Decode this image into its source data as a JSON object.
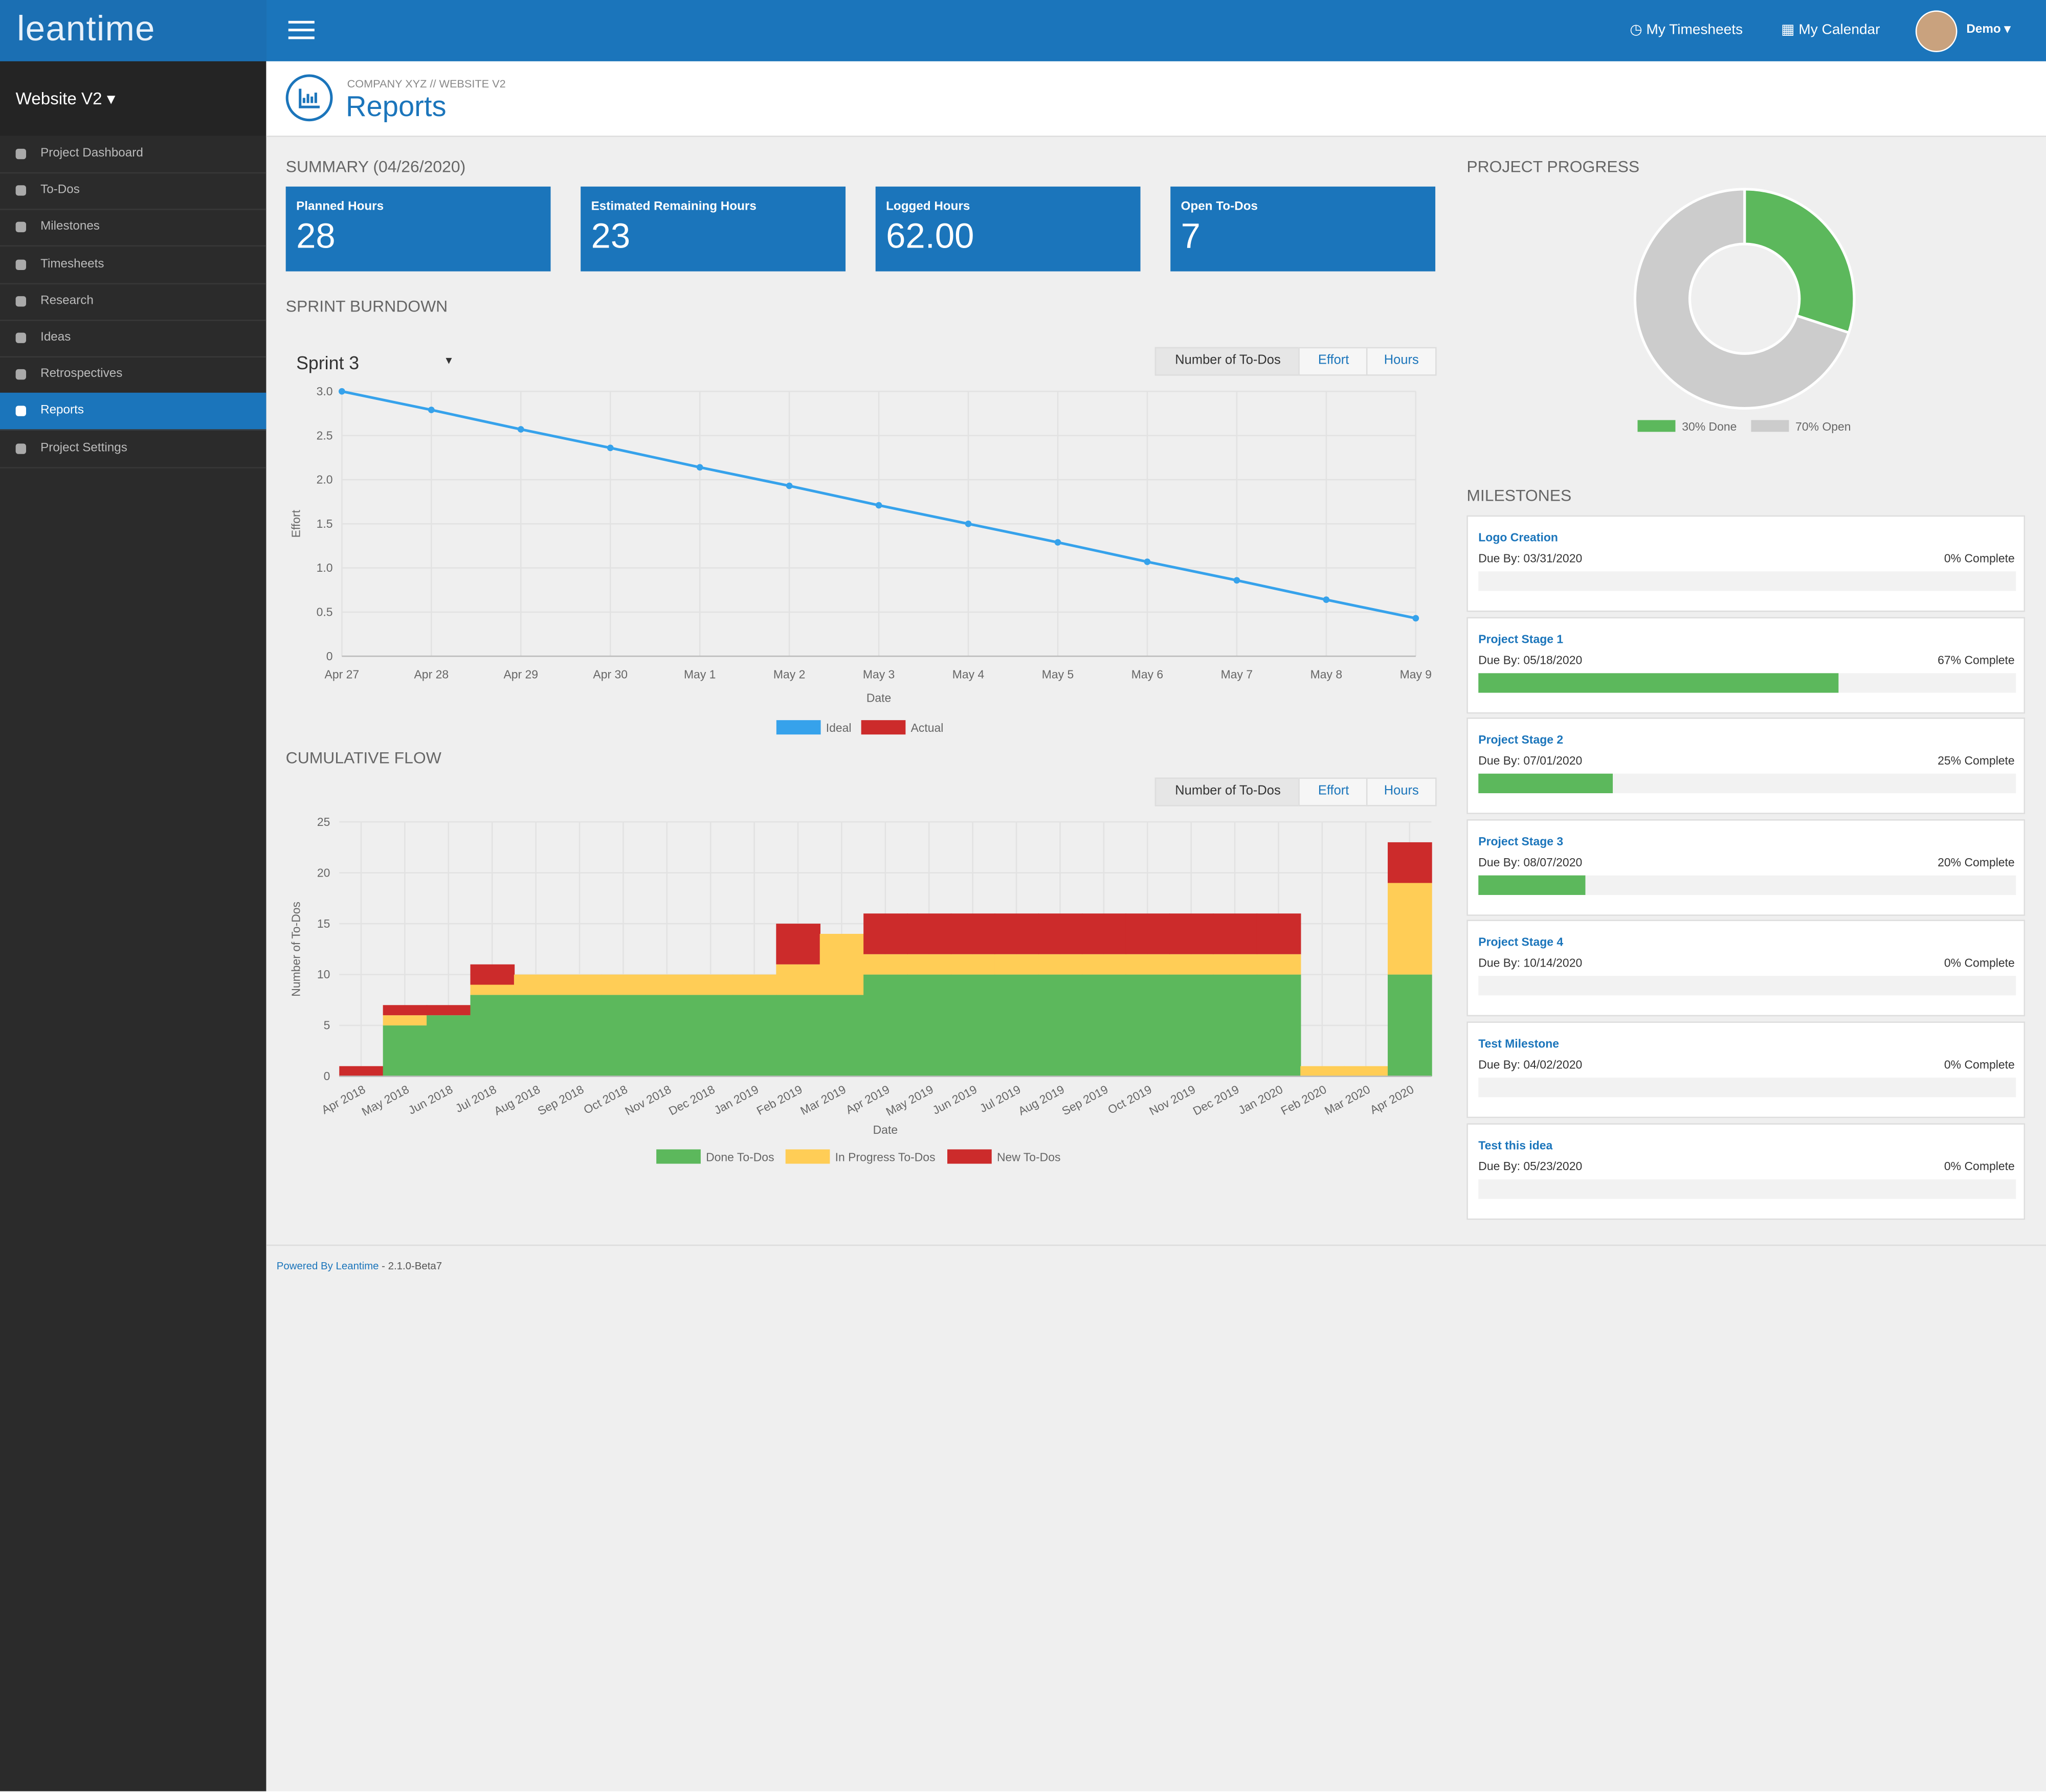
{
  "brand": "leantime",
  "project": "Website V2",
  "nav": {
    "items": [
      "Project Dashboard",
      "To-Dos",
      "Milestones",
      "Timesheets",
      "Research",
      "Ideas",
      "Retrospectives",
      "Reports",
      "Project Settings"
    ],
    "active_index": 7
  },
  "topbar": {
    "links": [
      "My Timesheets",
      "My Calendar"
    ],
    "user": "Demo"
  },
  "header": {
    "breadcrumb": "COMPANY XYZ // WEBSITE V2",
    "title": "Reports"
  },
  "summary": {
    "title": "SUMMARY (04/26/2020)",
    "cards": [
      {
        "label": "Planned Hours",
        "value": 28
      },
      {
        "label": "Estimated Remaining Hours",
        "value": 23
      },
      {
        "label": "Logged Hours",
        "value": "62.00"
      },
      {
        "label": "Open To-Dos",
        "value": 7
      }
    ]
  },
  "burndown": {
    "type": "line",
    "title": "SPRINT BURNDOWN",
    "sprint": "Sprint 3",
    "buttons": [
      "Number of To-Dos",
      "Effort",
      "Hours"
    ],
    "xlabel": "Date",
    "ylabel": "Effort",
    "categories": [
      "Apr 27",
      "Apr 28",
      "Apr 29",
      "Apr 30",
      "May 1",
      "May 2",
      "May 3",
      "May 4",
      "May 5",
      "May 6",
      "May 7",
      "May 8",
      "May 9"
    ],
    "series": [
      {
        "name": "Ideal",
        "color": "#36a2eb",
        "values": [
          3.0,
          2.79,
          2.57,
          2.36,
          2.14,
          1.93,
          1.71,
          1.5,
          1.29,
          1.07,
          0.86,
          0.64,
          0.43
        ]
      },
      {
        "name": "Actual",
        "color": "#cc2b2b",
        "values": [
          null,
          null,
          null,
          null,
          null,
          null,
          null,
          null,
          null,
          null,
          null,
          null,
          null
        ]
      }
    ],
    "ylim": [
      0,
      3
    ],
    "yticks": [
      0,
      0.5,
      {
        "value": 1,
        "label": "1.0"
      },
      1.5,
      {
        "value": 2,
        "label": "2.0"
      },
      2.5,
      {
        "value": 3,
        "label": "3.0"
      }
    ],
    "grid": true
  },
  "cumulative": {
    "type": "stacked-area",
    "title": "CUMULATIVE FLOW",
    "buttons": [
      "Number of To-Dos",
      "Effort",
      "Hours"
    ],
    "xlabel": "Date",
    "ylabel": "Number of To-Dos",
    "categories": [
      "Apr 2018",
      "May 2018",
      "Jun 2018",
      "Jul 2018",
      "Aug 2018",
      "Sep 2018",
      "Oct 2018",
      "Nov 2018",
      "Dec 2018",
      "Jan 2019",
      "Feb 2019",
      "Mar 2019",
      "Apr 2019",
      "May 2019",
      "Jun 2019",
      "Jul 2019",
      "Aug 2019",
      "Sep 2019",
      "Oct 2019",
      "Nov 2019",
      "Dec 2019",
      "Jan 2020",
      "Feb 2020",
      "Mar 2020",
      "Apr 2020"
    ],
    "series": [
      {
        "name": "Done To-Dos",
        "color": "#5cb85c",
        "values": [
          0,
          5,
          6,
          8,
          8,
          8,
          8,
          8,
          8,
          8,
          8,
          8,
          10,
          10,
          10,
          10,
          10,
          10,
          10,
          10,
          10,
          10,
          0,
          0,
          10
        ]
      },
      {
        "name": "In Progress To-Dos",
        "color": "#ffcd56",
        "values": [
          0,
          1,
          0,
          1,
          2,
          2,
          2,
          2,
          2,
          2,
          3,
          6,
          2,
          2,
          2,
          2,
          2,
          2,
          2,
          2,
          2,
          2,
          1,
          1,
          9
        ]
      },
      {
        "name": "New To-Dos",
        "color": "#cc2b2b",
        "values": [
          1,
          1,
          1,
          2,
          0,
          0,
          0,
          0,
          0,
          0,
          4,
          0,
          4,
          4,
          4,
          4,
          4,
          4,
          4,
          4,
          4,
          4,
          0,
          0,
          4
        ]
      }
    ],
    "ylim": [
      0,
      25
    ],
    "yticks": [
      0,
      5,
      10,
      15,
      20,
      25
    ],
    "grid": true
  },
  "progress": {
    "type": "pie",
    "title": "PROJECT PROGRESS",
    "values": [
      30,
      70
    ],
    "labels": [
      "30% Done",
      "70% Open"
    ],
    "colors": [
      "#5cb85c",
      "#cccccc"
    ]
  },
  "milestones": {
    "title": "MILESTONES",
    "items": [
      {
        "name": "Logo Creation",
        "due": "Due By: 03/31/2020",
        "complete": 0,
        "complete_label": "0% Complete"
      },
      {
        "name": "Project Stage 1",
        "due": "Due By: 05/18/2020",
        "complete": 67,
        "complete_label": "67% Complete"
      },
      {
        "name": "Project Stage 2",
        "due": "Due By: 07/01/2020",
        "complete": 25,
        "complete_label": "25% Complete"
      },
      {
        "name": "Project Stage 3",
        "due": "Due By: 08/07/2020",
        "complete": 20,
        "complete_label": "20% Complete"
      },
      {
        "name": "Project Stage 4",
        "due": "Due By: 10/14/2020",
        "complete": 0,
        "complete_label": "0% Complete"
      },
      {
        "name": "Test Milestone",
        "due": "Due By: 04/02/2020",
        "complete": 0,
        "complete_label": "0% Complete"
      },
      {
        "name": "Test this idea",
        "due": "Due By: 05/23/2020",
        "complete": 0,
        "complete_label": "0% Complete"
      }
    ]
  },
  "footer": {
    "link": "Powered By Leantime",
    "version": " - 2.1.0-Beta7"
  }
}
